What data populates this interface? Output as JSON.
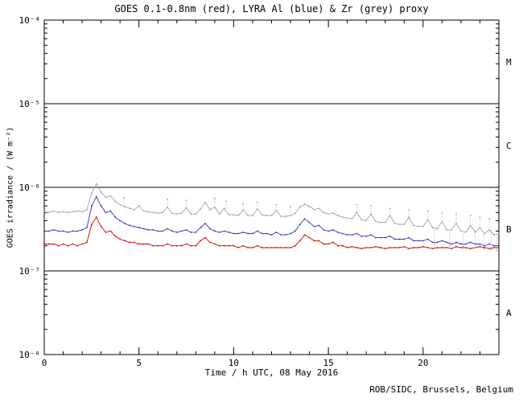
{
  "chart_data": {
    "type": "line",
    "title": "GOES 0.1-0.8nm (red), LYRA Al (blue) & Zr (grey) proxy",
    "xlabel": "Time / h UTC, 08 May 2016",
    "ylabel": "GOES irradiance / (W m⁻²)",
    "credit": "ROB/SIDC, Brussels, Belgium",
    "x_range": [
      0,
      24
    ],
    "x_major_ticks": [
      0,
      5,
      10,
      15,
      20
    ],
    "x_minor_step": 1,
    "y_scale": "log",
    "y_range": [
      1e-08,
      0.0001
    ],
    "y_tick_labels": [
      {
        "value": 0.0001,
        "label": "10⁻⁴"
      },
      {
        "value": 1e-05,
        "label": "10⁻⁵"
      },
      {
        "value": 1e-06,
        "label": "10⁻⁶"
      },
      {
        "value": 1e-07,
        "label": "10⁻⁷"
      },
      {
        "value": 1e-08,
        "label": "10⁻⁸"
      }
    ],
    "class_boundary_lines": [
      1e-05,
      1e-06,
      1e-07
    ],
    "flare_class_labels": [
      {
        "label": "M",
        "value": 3.16e-05
      },
      {
        "label": "C",
        "value": 3.16e-06
      },
      {
        "label": "B",
        "value": 3.16e-07
      },
      {
        "label": "A",
        "value": 3.16e-08
      }
    ],
    "colors": {
      "goes_red": "#d40000",
      "lyra_al_blue": "#3333bb",
      "lyra_zr_grey": "#a2a2a2",
      "axis": "#000000"
    },
    "scale": 1e-07,
    "value_unit": "values are in units of 1e-7 W m-2",
    "x": [
      0,
      0.25,
      0.5,
      0.75,
      1,
      1.25,
      1.5,
      1.75,
      2,
      2.25,
      2.5,
      2.75,
      3,
      3.25,
      3.5,
      3.75,
      4,
      4.25,
      4.5,
      4.75,
      5,
      5.25,
      5.5,
      5.75,
      6,
      6.25,
      6.5,
      6.75,
      7,
      7.25,
      7.5,
      7.75,
      8,
      8.25,
      8.5,
      8.75,
      9,
      9.25,
      9.5,
      9.75,
      10,
      10.25,
      10.5,
      10.75,
      11,
      11.25,
      11.5,
      11.75,
      12,
      12.25,
      12.5,
      12.75,
      13,
      13.25,
      13.5,
      13.75,
      14,
      14.25,
      14.5,
      14.75,
      15,
      15.25,
      15.5,
      15.75,
      16,
      16.25,
      16.5,
      16.75,
      17,
      17.25,
      17.5,
      17.75,
      18,
      18.25,
      18.5,
      18.75,
      19,
      19.25,
      19.5,
      19.75,
      20,
      20.25,
      20.5,
      20.75,
      21,
      21.25,
      21.5,
      21.75,
      22,
      22.25,
      22.5,
      22.75,
      23,
      23.25,
      23.5,
      23.75,
      24
    ],
    "series": [
      {
        "name": "LYRA Zr proxy",
        "color_key": "lyra_zr_grey",
        "values": [
          5.1,
          5.0,
          5.2,
          5.0,
          5.1,
          5.0,
          5.1,
          5.2,
          5.1,
          5.4,
          8.5,
          11.0,
          8.8,
          7.6,
          7.9,
          6.8,
          6.2,
          5.9,
          5.6,
          5.4,
          6.0,
          5.2,
          5.1,
          5.0,
          4.9,
          5.0,
          5.8,
          4.9,
          4.8,
          4.9,
          5.7,
          4.8,
          4.8,
          5.5,
          6.6,
          5.4,
          5.8,
          4.8,
          5.6,
          4.7,
          4.7,
          4.6,
          5.4,
          4.6,
          4.6,
          5.5,
          4.7,
          4.6,
          4.6,
          5.3,
          4.5,
          4.5,
          4.6,
          4.9,
          5.8,
          6.3,
          5.9,
          5.4,
          5.6,
          5.0,
          4.8,
          4.9,
          4.6,
          4.4,
          4.3,
          4.2,
          5.0,
          4.1,
          4.0,
          4.8,
          3.9,
          3.8,
          3.8,
          4.6,
          3.7,
          3.6,
          3.6,
          4.4,
          3.5,
          3.4,
          3.4,
          4.1,
          3.3,
          3.2,
          3.9,
          3.1,
          3.1,
          3.7,
          3.0,
          2.9,
          3.5,
          2.9,
          3.3,
          2.8,
          3.1,
          2.7,
          2.8
        ]
      },
      {
        "name": "LYRA Al proxy",
        "color_key": "lyra_al_blue",
        "values": [
          3.0,
          3.0,
          3.1,
          3.0,
          3.0,
          2.9,
          3.0,
          3.0,
          3.1,
          3.3,
          6.0,
          7.7,
          6.0,
          5.0,
          5.2,
          4.4,
          4.0,
          3.7,
          3.5,
          3.4,
          3.3,
          3.2,
          3.1,
          3.1,
          3.0,
          3.0,
          3.2,
          3.0,
          2.9,
          3.0,
          3.1,
          2.9,
          2.9,
          3.3,
          3.7,
          3.2,
          3.0,
          2.9,
          3.0,
          2.9,
          2.8,
          2.8,
          2.9,
          2.8,
          2.8,
          3.0,
          2.8,
          2.8,
          2.7,
          2.9,
          2.7,
          2.7,
          2.8,
          3.0,
          3.6,
          4.2,
          3.8,
          3.4,
          3.5,
          3.1,
          3.0,
          3.1,
          2.9,
          2.8,
          2.7,
          2.7,
          2.8,
          2.6,
          2.6,
          2.7,
          2.5,
          2.5,
          2.5,
          2.6,
          2.4,
          2.4,
          2.4,
          2.5,
          2.3,
          2.3,
          2.3,
          2.4,
          2.2,
          2.2,
          2.3,
          2.2,
          2.1,
          2.2,
          2.1,
          2.1,
          2.2,
          2.1,
          2.1,
          2.0,
          2.1,
          2.0,
          2.0
        ]
      },
      {
        "name": "GOES 0.1-0.8nm",
        "color_key": "goes_red",
        "values": [
          2.1,
          2.1,
          2.1,
          2.0,
          2.1,
          2.0,
          2.1,
          2.0,
          2.1,
          2.2,
          3.6,
          4.4,
          3.4,
          2.9,
          3.0,
          2.6,
          2.4,
          2.3,
          2.2,
          2.2,
          2.1,
          2.1,
          2.1,
          2.0,
          2.0,
          2.0,
          2.1,
          2.0,
          2.0,
          2.0,
          2.1,
          2.0,
          2.0,
          2.3,
          2.5,
          2.2,
          2.1,
          2.0,
          2.0,
          2.0,
          2.0,
          1.9,
          2.0,
          1.9,
          1.9,
          2.0,
          1.9,
          1.9,
          1.9,
          1.9,
          1.9,
          1.9,
          1.9,
          2.0,
          2.3,
          2.7,
          2.5,
          2.3,
          2.3,
          2.1,
          2.1,
          2.2,
          2.0,
          2.0,
          1.9,
          1.95,
          1.9,
          1.85,
          1.9,
          1.9,
          1.95,
          1.9,
          1.85,
          1.9,
          1.9,
          1.9,
          1.95,
          1.85,
          1.9,
          1.9,
          1.95,
          1.9,
          1.85,
          1.9,
          1.9,
          1.9,
          1.85,
          1.95,
          1.9,
          1.9,
          1.85,
          1.9,
          1.95,
          1.9,
          1.85,
          1.9,
          1.9
        ]
      }
    ],
    "spikes_up": [
      [
        4.2,
        7.5
      ],
      [
        6.5,
        7.2
      ],
      [
        7.5,
        7.0
      ],
      [
        9.0,
        7.4
      ],
      [
        9.6,
        6.8
      ],
      [
        10.5,
        6.4
      ],
      [
        11.25,
        6.6
      ],
      [
        12.25,
        6.2
      ],
      [
        13.0,
        5.9
      ],
      [
        16.5,
        6.2
      ],
      [
        17.25,
        6.0
      ],
      [
        18.25,
        5.6
      ],
      [
        19.25,
        5.4
      ],
      [
        20.25,
        5.2
      ],
      [
        21.0,
        5.0
      ],
      [
        21.75,
        4.8
      ],
      [
        22.5,
        4.6
      ],
      [
        23.0,
        4.4
      ],
      [
        23.5,
        4.2
      ]
    ],
    "spikes_down": [
      [
        20.6,
        2.1
      ],
      [
        21.4,
        2.0
      ],
      [
        22.1,
        1.95
      ],
      [
        22.75,
        1.9
      ],
      [
        23.2,
        1.85
      ],
      [
        23.6,
        1.8
      ],
      [
        23.9,
        1.75
      ]
    ]
  }
}
